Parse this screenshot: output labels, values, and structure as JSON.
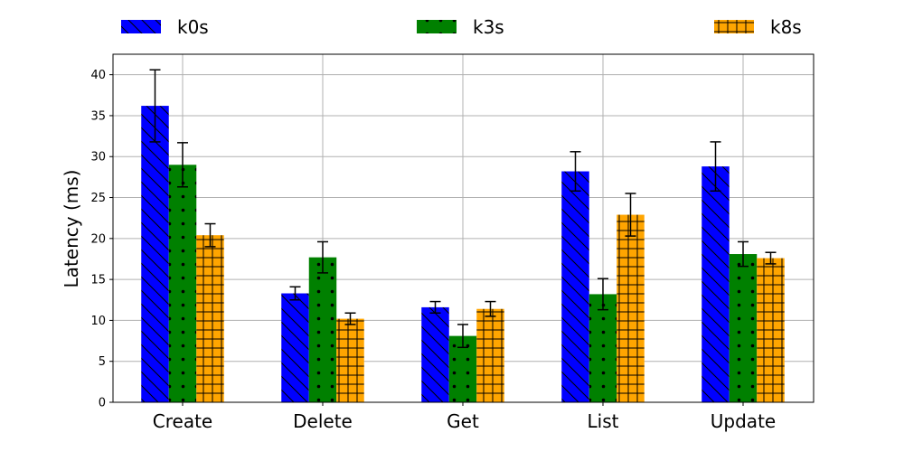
{
  "chart_data": {
    "type": "bar",
    "ylabel": "Latency (ms)",
    "ylim": [
      0,
      42.5
    ],
    "yticks": [
      0,
      5,
      10,
      15,
      20,
      25,
      30,
      35,
      40
    ],
    "grid": true,
    "legend_position": "top",
    "categories": [
      "Create",
      "Delete",
      "Get",
      "List",
      "Update"
    ],
    "series": [
      {
        "name": "k0s",
        "color": "#0000ff",
        "hatch": "diagonal",
        "values": [
          36.2,
          13.3,
          11.6,
          28.2,
          28.8
        ],
        "errors": [
          4.4,
          0.8,
          0.7,
          2.4,
          3.0
        ]
      },
      {
        "name": "k3s",
        "color": "#008000",
        "hatch": "dots",
        "values": [
          29.0,
          17.7,
          8.1,
          13.2,
          18.1
        ],
        "errors": [
          2.7,
          1.9,
          1.4,
          1.9,
          1.5
        ]
      },
      {
        "name": "k8s",
        "color": "#ffa500",
        "hatch": "grid",
        "values": [
          20.4,
          10.2,
          11.4,
          22.9,
          17.6
        ],
        "errors": [
          1.4,
          0.7,
          0.9,
          2.6,
          0.7
        ]
      }
    ]
  }
}
